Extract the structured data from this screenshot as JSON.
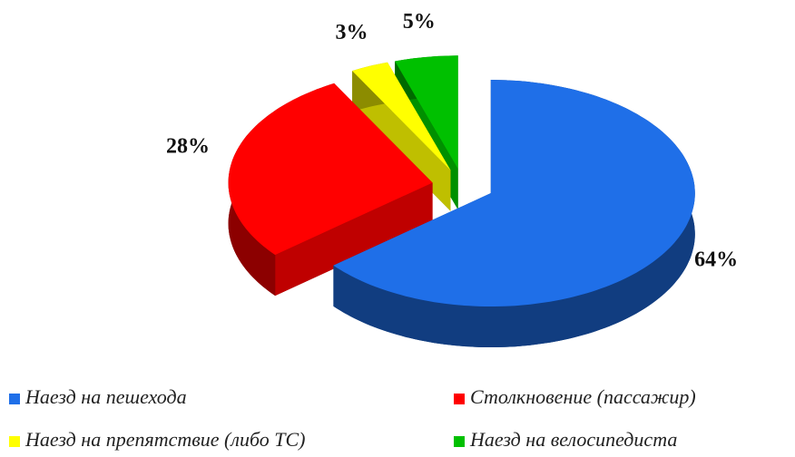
{
  "chart_data": {
    "type": "pie3d",
    "categories": [
      "Наезд на пешехода",
      "Столкновение (пассажир)",
      "Наезд на препятствие (либо ТС)",
      "Наезд на велосипедиста"
    ],
    "values": [
      64,
      28,
      3,
      5
    ],
    "value_labels": [
      "64%",
      "28%",
      "3%",
      "5%"
    ],
    "colors": [
      "#1f6fe8",
      "#ff0000",
      "#ffff00",
      "#00c000"
    ],
    "legend": "bottom"
  }
}
